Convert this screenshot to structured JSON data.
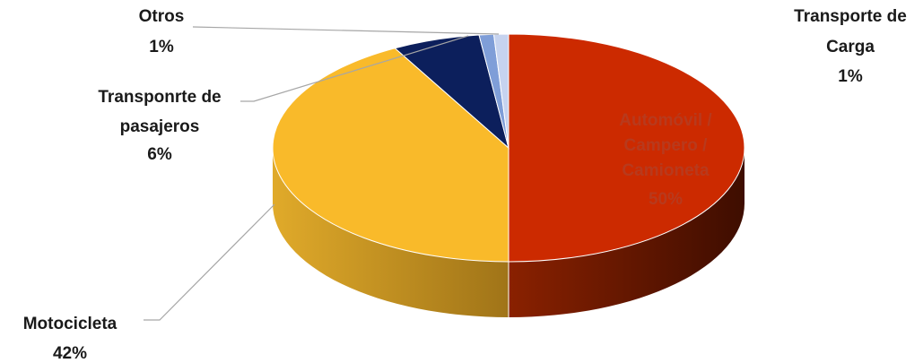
{
  "chart_data": {
    "type": "pie",
    "title": "",
    "three_d": true,
    "legend": "none",
    "slices": [
      {
        "name": "Automóvil / Campero / Camioneta",
        "value": 50,
        "pct_label": "50%",
        "label_lines": [
          "Automóvil /",
          "Campero /",
          "Camioneta"
        ],
        "color": "#cc2a00",
        "side_color": "#7a1a00"
      },
      {
        "name": "Motocicleta",
        "value": 42,
        "pct_label": "42%",
        "label_lines": [
          "Motocicleta"
        ],
        "color": "#f9ba2a",
        "side_color": "#c58a16"
      },
      {
        "name": "Transponrte de pasajeros",
        "value": 6,
        "pct_label": "6%",
        "label_lines": [
          "Transponrte de",
          "pasajeros"
        ],
        "color": "#0c1f5c",
        "side_color": "#071238"
      },
      {
        "name": "Otros",
        "value": 1,
        "pct_label": "1%",
        "label_lines": [
          "Otros"
        ],
        "color": "#7f9ed8",
        "side_color": "#4d6aa3"
      },
      {
        "name": "Transporte de Carga",
        "value": 1,
        "pct_label": "1%",
        "label_lines": [
          "Transporte de",
          "Carga"
        ],
        "color": "#c6d3ef",
        "side_color": "#8597bd"
      }
    ]
  }
}
